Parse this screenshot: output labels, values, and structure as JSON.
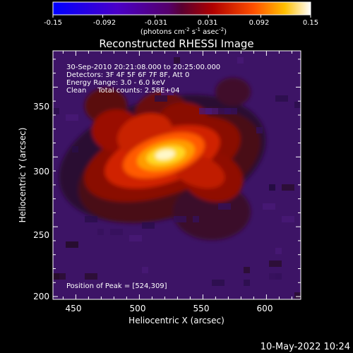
{
  "colorbar": {
    "ticks": [
      "-0.15",
      "-0.092",
      "-0.031",
      "0.031",
      "0.092",
      "0.15"
    ],
    "tick_values": [
      -0.15,
      -0.092,
      -0.031,
      0.031,
      0.092,
      0.15
    ],
    "unit_main": "(photons cm",
    "unit_exp1": "-2",
    "unit_mid": " s",
    "unit_exp2": "-1",
    "unit_mid2": " asec",
    "unit_exp3": "-2",
    "unit_end": ")",
    "range": [
      -0.15,
      0.15
    ]
  },
  "info": {
    "line1": "30-Sep-2010 20:21:08.000 to 20:25:00.000",
    "line2": "Detectors: 3F 4F 5F 6F 7F 8F, Att 0",
    "line3": "Energy Range: 3.0 - 6.0 keV",
    "line4": "Clean     Total counts: 2.58E+04",
    "peak": "Position of Peak = [524,309]"
  },
  "footer": {
    "date": "10-May-2022 10:24"
  },
  "colors": {
    "background": "#000000",
    "foreground": "#ffffff"
  },
  "chart_data": {
    "type": "heatmap",
    "title": "Reconstructed RHESSI Image",
    "xlabel": "Heliocentric X (arcsec)",
    "ylabel": "Heliocentric Y (arcsec)",
    "xlim": [
      432,
      627
    ],
    "ylim": [
      198,
      376
    ],
    "xticks": [
      450,
      500,
      550,
      600
    ],
    "yticks": [
      200,
      250,
      300,
      350
    ],
    "xtick_labels": [
      "450",
      "500",
      "550",
      "600"
    ],
    "ytick_labels": [
      "200",
      "250",
      "300",
      "350"
    ],
    "peak": [
      524,
      309
    ],
    "colormap": "blue-purple-red-yellow-white",
    "value_range": [
      -0.15,
      0.15
    ]
  }
}
